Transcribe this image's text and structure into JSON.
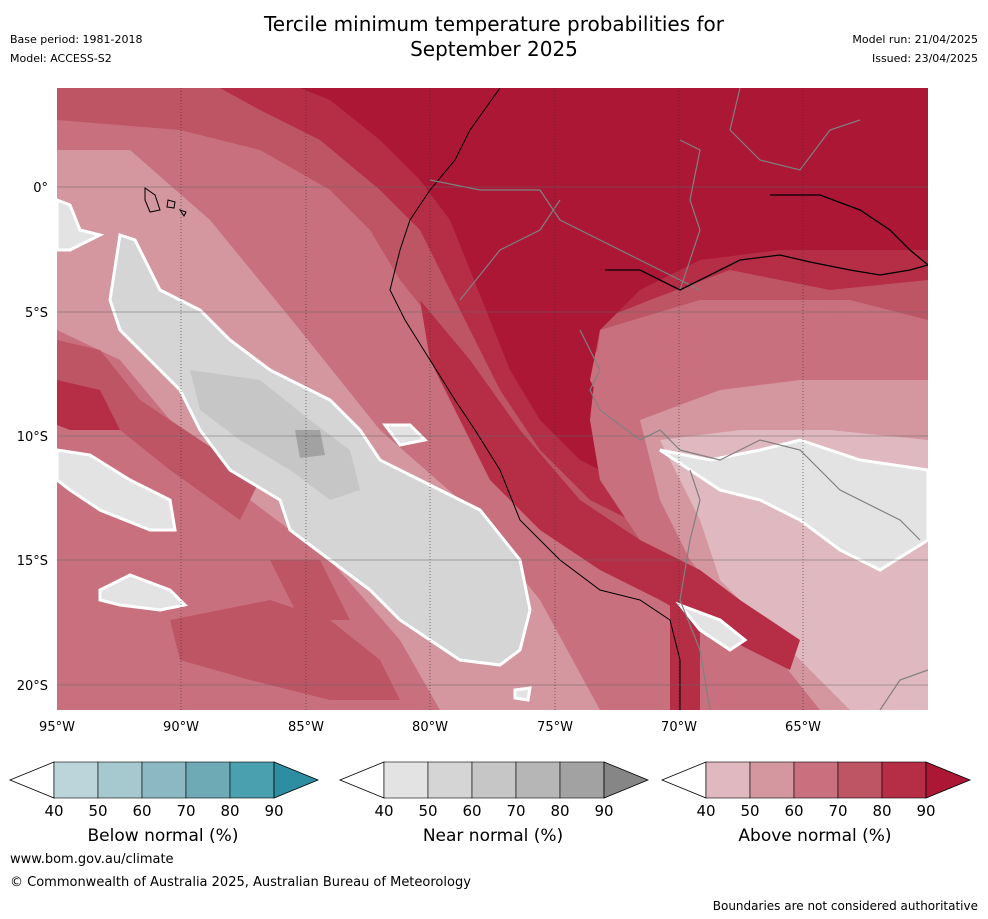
{
  "header": {
    "title_line1": "Tercile minimum temperature probabilities for",
    "title_line2": "September 2025",
    "base_period": "Base period: 1981-2018",
    "model": "Model: ACCESS-S2",
    "model_run": "Model run: 21/04/2025",
    "issued": "Issued: 23/04/2025"
  },
  "map": {
    "lon_labels": [
      "95°W",
      "90°W",
      "85°W",
      "80°W",
      "75°W",
      "70°W",
      "65°W"
    ],
    "lat_labels": [
      "0°",
      "5°S",
      "10°S",
      "15°S",
      "20°S"
    ]
  },
  "legends": [
    {
      "id": "below",
      "title": "Below normal (%)",
      "ticks": [
        "40",
        "50",
        "60",
        "70",
        "80",
        "90"
      ],
      "colors": [
        "#bcd5db",
        "#a6c8cf",
        "#8cb8c3",
        "#6daab5",
        "#4aa0af",
        "#2e8ea1"
      ]
    },
    {
      "id": "near",
      "title": "Near normal (%)",
      "ticks": [
        "40",
        "50",
        "60",
        "70",
        "80",
        "90"
      ],
      "colors": [
        "#e3e3e3",
        "#d5d5d5",
        "#c6c6c6",
        "#b6b6b6",
        "#a2a2a2",
        "#868686"
      ]
    },
    {
      "id": "above",
      "title": "Above normal (%)",
      "ticks": [
        "40",
        "50",
        "60",
        "70",
        "80",
        "90"
      ],
      "colors": [
        "#e0b8bf",
        "#d4969f",
        "#c9707e",
        "#be5565",
        "#b52e46",
        "#ab1735"
      ]
    }
  ],
  "footer": {
    "url": "www.bom.gov.au/climate",
    "copyright": "© Commonwealth of Australia 2025, Australian Bureau of Meteorology",
    "disclaimer": "Boundaries are not considered authoritative"
  }
}
